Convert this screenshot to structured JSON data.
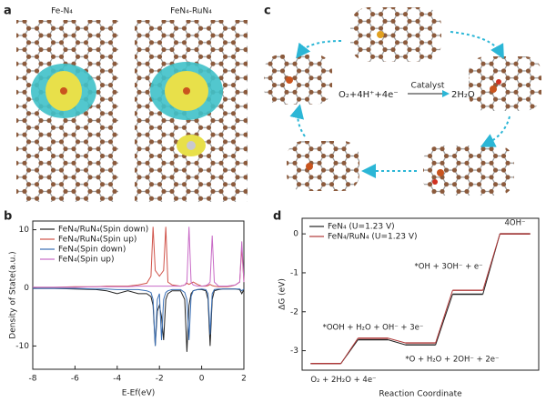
{
  "panel_labels": [
    "a",
    "b",
    "c",
    "d"
  ],
  "panel_a": {
    "titles": [
      "Fe-N₄",
      "FeN₄-RuN₄"
    ]
  },
  "panel_c": {
    "reactants": "O₂+4H⁺+4e⁻",
    "catalyst": "Catalyst",
    "product": "2H₂O"
  },
  "chart_data": [
    {
      "type": "line",
      "x": [
        -8,
        -7,
        -6,
        -5,
        -4.5,
        -4,
        -3.5,
        -3,
        -2.6,
        -2.4,
        -2.3,
        -2.2,
        -2.1,
        -2.0,
        -1.9,
        -1.8,
        -1.7,
        -1.6,
        -1.4,
        -1.2,
        -1.0,
        -0.8,
        -0.7,
        -0.6,
        -0.5,
        -0.4,
        -0.2,
        0,
        0.2,
        0.3,
        0.4,
        0.5,
        0.6,
        0.8,
        1.0,
        1.2,
        1.4,
        1.6,
        1.8,
        1.9,
        2.0
      ],
      "series": [
        {
          "name": "FeN₄/RuN₄(Spin down)",
          "color": "#222222",
          "values": [
            -0.1,
            -0.1,
            -0.2,
            -0.3,
            -0.5,
            -1,
            -0.5,
            -1,
            -1,
            -1.5,
            -3,
            -10,
            -4,
            -3,
            -5,
            -9,
            -2,
            -1,
            -0.5,
            -0.5,
            -0.5,
            -2,
            -11,
            -3,
            -1,
            -0.5,
            -0.3,
            -0.3,
            -0.5,
            -2,
            -10,
            -2,
            -0.5,
            -0.3,
            -0.2,
            -0.2,
            -0.2,
            -0.2,
            -0.3,
            -1,
            -0.3
          ]
        },
        {
          "name": "FeN₄/RuN₄(Spin up)",
          "color": "#d0534a",
          "values": [
            0.1,
            0.1,
            0.2,
            0.2,
            0.3,
            0.3,
            0.3,
            0.5,
            0.8,
            2,
            10.5,
            3,
            2.5,
            2,
            2.5,
            3,
            10.5,
            1,
            0.5,
            0.4,
            0.3,
            0.5,
            0.8,
            0.6,
            0.8,
            1,
            0.6,
            0.3,
            0.3,
            0.4,
            0.6,
            0.4,
            0.3,
            0.2,
            0.2,
            0.2,
            0.3,
            0.5,
            1,
            7,
            1
          ]
        },
        {
          "name": "FeN₄(Spin down)",
          "color": "#3a6fb5",
          "values": [
            -0.1,
            -0.1,
            -0.1,
            -0.2,
            -0.2,
            -0.3,
            -0.3,
            -0.3,
            -0.5,
            -0.8,
            -2,
            -10,
            -2,
            -1,
            -9,
            -2,
            -0.8,
            -0.5,
            -0.3,
            -0.3,
            -0.3,
            -0.8,
            -2,
            -9,
            -1.5,
            -0.5,
            -0.3,
            -0.2,
            -0.3,
            -1,
            -8,
            -1,
            -0.3,
            -0.2,
            -0.2,
            -0.2,
            -0.2,
            -0.2,
            -0.2,
            -0.5,
            -0.2
          ]
        },
        {
          "name": "FeN₄(Spin up)",
          "color": "#c86ac6",
          "values": [
            0.1,
            0.1,
            0.1,
            0.2,
            0.2,
            0.2,
            0.2,
            0.3,
            0.3,
            0.3,
            0.3,
            0.3,
            0.3,
            0.3,
            0.3,
            0.3,
            0.3,
            0.3,
            0.3,
            0.3,
            0.3,
            0.5,
            1,
            10.5,
            1,
            0.5,
            0.3,
            0.3,
            0.4,
            0.6,
            1,
            9,
            1,
            0.3,
            0.3,
            0.3,
            0.4,
            0.5,
            1,
            8,
            1
          ]
        }
      ],
      "xlabel": "E-Ef(eV)",
      "ylabel": "Density of State(a.u.)",
      "xlim": [
        -8,
        2
      ],
      "xticks": [
        -8,
        -6,
        -4,
        -2,
        0,
        2
      ],
      "ylim": [
        -14,
        11.5
      ],
      "yticks": [
        -10,
        0,
        10
      ],
      "legend": "upper-left"
    },
    {
      "type": "step",
      "categories": [
        "O₂ + 2H₂O + 4e⁻",
        "*OOH + H₂O + OH⁻ + 3e⁻",
        "*O + H₂O + 2OH⁻ + 2e⁻",
        "*OH + 3OH⁻ + e⁻",
        "4OH⁻"
      ],
      "series": [
        {
          "name": "FeN₄ (U=1.23 V)",
          "color": "#222222",
          "values": [
            -3.33,
            -2.72,
            -2.85,
            -1.55,
            0
          ]
        },
        {
          "name": "FeN₄/RuN₄ (U=1.23 V)",
          "color": "#b03a3a",
          "values": [
            -3.33,
            -2.68,
            -2.8,
            -1.45,
            0
          ]
        }
      ],
      "xlabel": "Reaction Coordinate",
      "ylabel": "ΔG (eV)",
      "ylim": [
        -3.5,
        0.4
      ],
      "yticks": [
        -3,
        -2,
        -1,
        0
      ],
      "legend": "upper-left"
    }
  ]
}
